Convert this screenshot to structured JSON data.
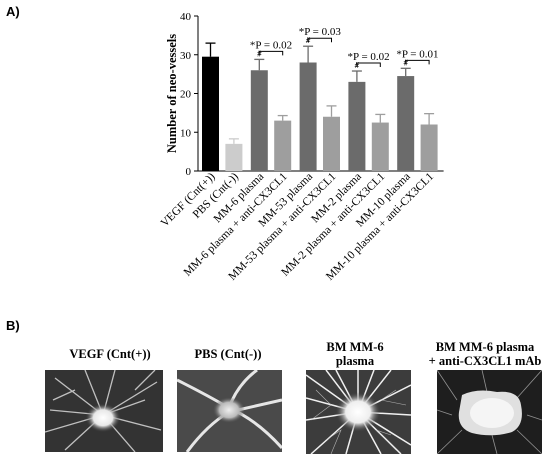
{
  "panel_a_label": "A)",
  "panel_b_label": "B)",
  "chart_data": {
    "type": "bar",
    "ylabel": "Number of neo-vessels",
    "ylim": [
      0,
      40
    ],
    "yticks": [
      0,
      10,
      20,
      30,
      40
    ],
    "grid": false,
    "legend": "none",
    "categories": [
      "VEGF (Cnt(+))",
      "PBS (Cnt(-))",
      "MM-6 plasma",
      "MM-6 plasma + anti-CX3CL1",
      "MM-53 plasma",
      "MM-53 plasma + anti-CX3CL1",
      "MM-2 plasma",
      "MM-2 plasma + anti-CX3CL1",
      "MM-10 plasma",
      "MM-10 plasma + anti-CX3CL1"
    ],
    "values": [
      29.5,
      7,
      26,
      13,
      28,
      14,
      23,
      12.5,
      24.5,
      12
    ],
    "errors": [
      3.5,
      1.3,
      2.8,
      1.3,
      4.2,
      2.8,
      2.8,
      2.1,
      2,
      2.8
    ],
    "colors": [
      "#000000",
      "#cccccc",
      "#6b6b6b",
      "#9e9e9e",
      "#6b6b6b",
      "#9e9e9e",
      "#6b6b6b",
      "#9e9e9e",
      "#6b6b6b",
      "#9e9e9e"
    ],
    "hash_marks": [
      "",
      "",
      "#",
      "",
      "#",
      "",
      "#",
      "",
      "#",
      ""
    ],
    "comparisons": [
      {
        "pair": [
          2,
          3
        ],
        "label": "*P = 0.02"
      },
      {
        "pair": [
          4,
          5
        ],
        "label": "*P = 0.03"
      },
      {
        "pair": [
          6,
          7
        ],
        "label": "*P = 0.02"
      },
      {
        "pair": [
          8,
          9
        ],
        "label": "*P = 0.01"
      }
    ]
  },
  "images": [
    {
      "title_line1": "VEGF (Cnt(+))",
      "title_line2": ""
    },
    {
      "title_line1": "PBS (Cnt(-))",
      "title_line2": ""
    },
    {
      "title_line1": "BM MM-6",
      "title_line2": "plasma"
    },
    {
      "title_line1": "BM MM-6 plasma",
      "title_line2": "+ anti-CX3CL1 mAb"
    }
  ]
}
